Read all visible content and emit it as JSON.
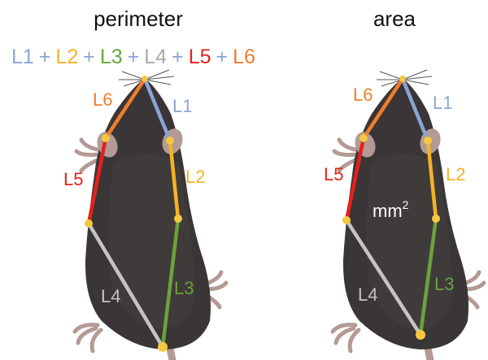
{
  "titles": {
    "perimeter": "perimeter",
    "area": "area"
  },
  "formula": {
    "terms": [
      {
        "label": "L1",
        "color": "#8aa4d4"
      },
      {
        "label": "L2",
        "color": "#f5b324"
      },
      {
        "label": "L3",
        "color": "#6aa33b"
      },
      {
        "label": "L4",
        "color": "#a9a9a9"
      },
      {
        "label": "L5",
        "color": "#e3211c"
      },
      {
        "label": "L6",
        "color": "#ee7d2e"
      }
    ],
    "operator": "+"
  },
  "segment_labels": {
    "L1": "L1",
    "L2": "L2",
    "L3": "L3",
    "L4": "L4",
    "L5": "L5",
    "L6": "L6"
  },
  "area_label": {
    "base": "mm",
    "exponent": "2"
  },
  "colors": {
    "L1": "#8aa4d4",
    "L2": "#f5b324",
    "L3": "#6aa33b",
    "L4": "#c4c4c4",
    "L5": "#e3211c",
    "L6": "#ee7d2e",
    "joint": "#f5c842",
    "body": "#3a3536",
    "paw": "#b39a94"
  }
}
